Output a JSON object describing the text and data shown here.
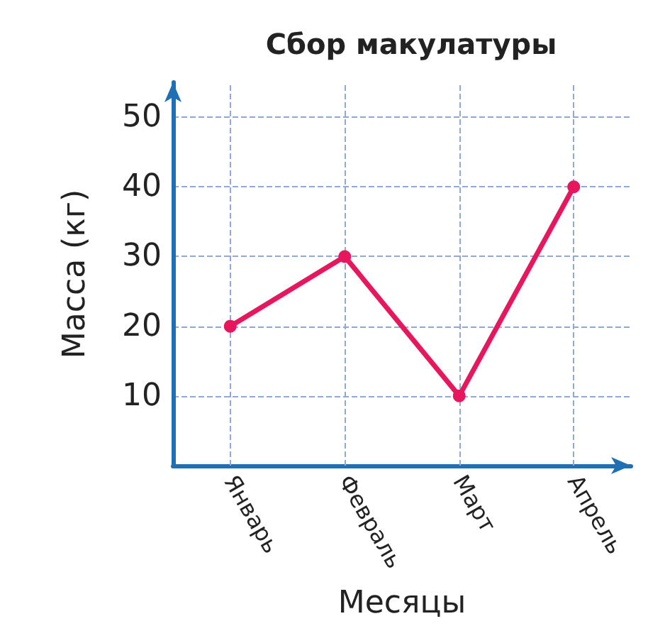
{
  "chart_data": {
    "type": "line",
    "title": "Сбор макулатуры",
    "xlabel": "Месяцы",
    "ylabel": "Масса (кг)",
    "categories": [
      "Январь",
      "Февраль",
      "Март",
      "Апрель"
    ],
    "series": [
      {
        "color": "#e8175d",
        "values": [
          20,
          30,
          10,
          40
        ]
      }
    ],
    "ylim": [
      0,
      55
    ],
    "yticks": [
      10,
      20,
      30,
      40,
      50
    ],
    "grid": true,
    "marker": "circle",
    "line_style": "solid"
  }
}
